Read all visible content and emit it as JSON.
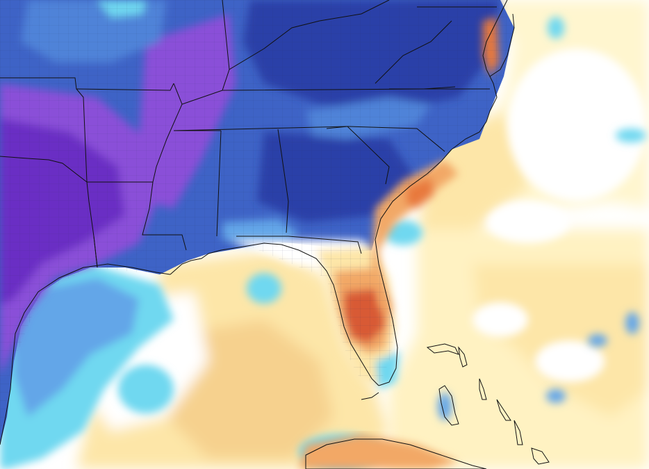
{
  "map": {
    "kind": "temperature-anomaly-field",
    "region": "southeastern-us-gulf-of-mexico-western-atlantic",
    "palette": {
      "purple_deep": "#6a2fc4",
      "purple": "#8a4fd8",
      "blue_dark": "#2b3fa8",
      "blue": "#3e63c6",
      "blue_mid": "#4f83d8",
      "blue_light": "#63a6e8",
      "cyan": "#6fd8f0",
      "cyan_light": "#a8ecf6",
      "white": "#ffffff",
      "cream": "#fff6cf",
      "yellow": "#fde6a8",
      "tan": "#f6d18e",
      "orange": "#f2a866",
      "orange_dark": "#e8793e",
      "red": "#d85a35",
      "border": "#111111"
    }
  }
}
